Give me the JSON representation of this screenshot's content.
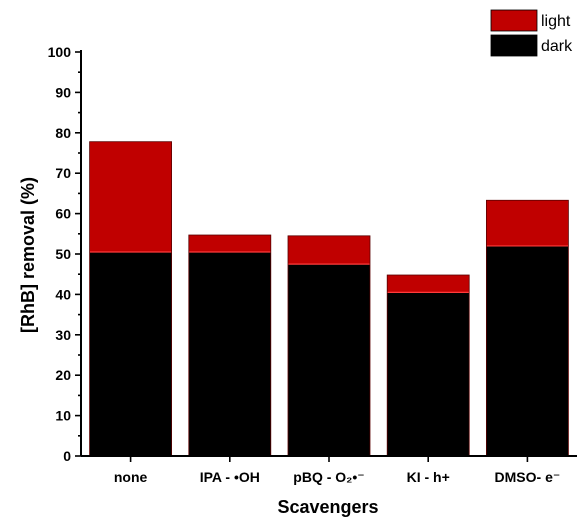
{
  "chart_data": {
    "type": "bar",
    "stacked": true,
    "title": "",
    "xlabel": "Scavengers",
    "ylabel": "[RhB] removal (%)",
    "ylim": [
      0,
      100
    ],
    "yticks": [
      0,
      10,
      20,
      30,
      40,
      50,
      60,
      70,
      80,
      90,
      100
    ],
    "categories": [
      "none",
      "IPA - •OH",
      "pBQ - O₂•⁻",
      "KI - h+",
      "DMSO- e⁻"
    ],
    "series": [
      {
        "name": "dark",
        "color": "#000000",
        "values": [
          50.5,
          50.5,
          47.5,
          40.5,
          52.0
        ]
      },
      {
        "name": "light",
        "color": "#c00000",
        "values": [
          27.3,
          4.2,
          7.0,
          4.3,
          11.3
        ]
      }
    ],
    "legend": {
      "position": "top-right",
      "entries": [
        "light",
        "dark"
      ]
    },
    "grid": false
  }
}
